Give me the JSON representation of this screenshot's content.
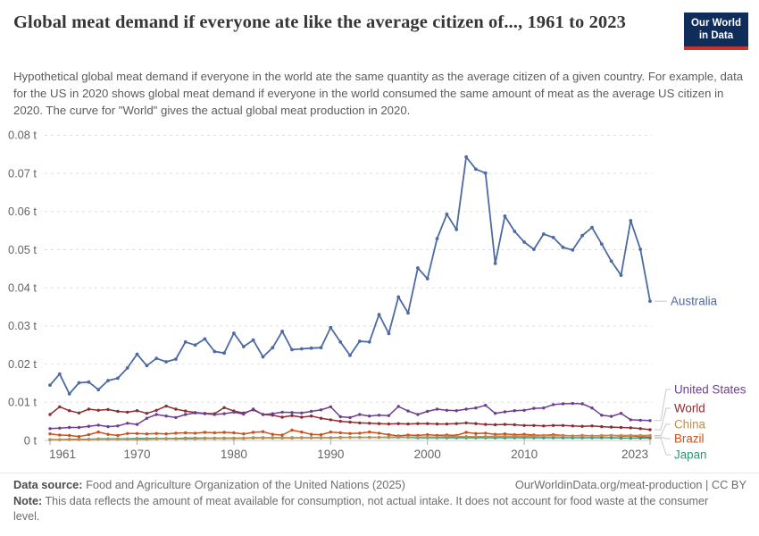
{
  "header": {
    "title": "Global meat demand if everyone ate like the average citizen of..., 1961 to 2023",
    "subtitle": "Hypothetical global meat demand if everyone in the world ate the same quantity as the average citizen of a given country. For example, data for the US in 2020 shows global meat demand if everyone in the world consumed the same amount of meat as the average US citizen in 2020. The curve for \"World\" gives the actual global meat production in 2020.",
    "logo": {
      "line1": "Our World",
      "line2": "in Data",
      "bg_color": "#0F2D5A",
      "accent_color": "#C8342C"
    }
  },
  "chart_data": {
    "type": "line",
    "title": "Global meat demand if everyone ate like the average citizen of..., 1961 to 2023",
    "unit": "t",
    "xlim": [
      1961,
      2023
    ],
    "ylim": [
      0,
      0.08
    ],
    "grid": "horizontal-dashed",
    "legend_position": "right",
    "xticks": [
      1961,
      1970,
      1980,
      1990,
      2000,
      2010,
      2023
    ],
    "yticks": [
      0,
      0.01,
      0.02,
      0.03,
      0.04,
      0.05,
      0.06,
      0.07,
      0.08
    ],
    "ytick_labels": [
      "0 t",
      "0.01 t",
      "0.02 t",
      "0.03 t",
      "0.04 t",
      "0.05 t",
      "0.06 t",
      "0.07 t",
      "0.08 t"
    ],
    "legend_label_y": [
      337,
      436,
      457,
      475,
      491,
      509
    ],
    "axis_text_color": "#636363",
    "gridline_color": "#dedede",
    "axis_line_color": "#c9c9c9",
    "connector_color": "#c8c8c8",
    "x": [
      1961,
      1962,
      1963,
      1964,
      1965,
      1966,
      1967,
      1968,
      1969,
      1970,
      1971,
      1972,
      1973,
      1974,
      1975,
      1976,
      1977,
      1978,
      1979,
      1980,
      1981,
      1982,
      1983,
      1984,
      1985,
      1986,
      1987,
      1988,
      1989,
      1990,
      1991,
      1992,
      1993,
      1994,
      1995,
      1996,
      1997,
      1998,
      1999,
      2000,
      2001,
      2002,
      2003,
      2004,
      2005,
      2006,
      2007,
      2008,
      2009,
      2010,
      2011,
      2012,
      2013,
      2014,
      2015,
      2016,
      2017,
      2018,
      2019,
      2020,
      2021,
      2022,
      2023
    ],
    "series": [
      {
        "name": "Australia",
        "color": "#4D6BA2",
        "values": [
          0.0145,
          0.0174,
          0.0122,
          0.0151,
          0.0153,
          0.0133,
          0.0157,
          0.0163,
          0.019,
          0.0226,
          0.0196,
          0.0215,
          0.0206,
          0.0213,
          0.0258,
          0.025,
          0.0266,
          0.0233,
          0.0229,
          0.0281,
          0.0246,
          0.0263,
          0.0219,
          0.0243,
          0.0286,
          0.0238,
          0.024,
          0.0242,
          0.0243,
          0.0296,
          0.0258,
          0.0223,
          0.026,
          0.0258,
          0.033,
          0.028,
          0.0376,
          0.0334,
          0.0452,
          0.0424,
          0.0529,
          0.0593,
          0.0553,
          0.0743,
          0.0711,
          0.0701,
          0.0464,
          0.0588,
          0.0548,
          0.052,
          0.0501,
          0.0541,
          0.0532,
          0.0506,
          0.0499,
          0.0537,
          0.0558,
          0.0515,
          0.047,
          0.0433,
          0.0576,
          0.0501,
          0.0365
        ]
      },
      {
        "name": "United States",
        "color": "#6D3E91",
        "values": [
          0.0031,
          0.0032,
          0.0034,
          0.0034,
          0.0037,
          0.004,
          0.0036,
          0.0038,
          0.0045,
          0.0042,
          0.0058,
          0.0068,
          0.0064,
          0.006,
          0.0068,
          0.0072,
          0.007,
          0.0068,
          0.007,
          0.0074,
          0.0069,
          0.0082,
          0.0068,
          0.007,
          0.0074,
          0.0073,
          0.0072,
          0.0076,
          0.008,
          0.0088,
          0.0062,
          0.006,
          0.0068,
          0.0064,
          0.0066,
          0.0065,
          0.0089,
          0.0077,
          0.0068,
          0.0076,
          0.0082,
          0.0079,
          0.0078,
          0.0082,
          0.0085,
          0.0092,
          0.0071,
          0.0075,
          0.0078,
          0.0079,
          0.0084,
          0.0085,
          0.0094,
          0.0096,
          0.0097,
          0.0096,
          0.0085,
          0.0066,
          0.0063,
          0.0071,
          0.0054,
          0.0053,
          0.0052
        ]
      },
      {
        "name": "World",
        "color": "#8C2D32",
        "values": [
          0.0068,
          0.0088,
          0.0078,
          0.0072,
          0.0082,
          0.0079,
          0.0081,
          0.0076,
          0.0074,
          0.0078,
          0.0071,
          0.0079,
          0.009,
          0.0082,
          0.0077,
          0.0073,
          0.0071,
          0.007,
          0.0086,
          0.0077,
          0.0072,
          0.008,
          0.0068,
          0.0066,
          0.0061,
          0.0065,
          0.0061,
          0.0064,
          0.0058,
          0.0054,
          0.005,
          0.0048,
          0.0046,
          0.0045,
          0.0044,
          0.0043,
          0.0044,
          0.0043,
          0.0044,
          0.0044,
          0.0043,
          0.0043,
          0.0044,
          0.0046,
          0.0044,
          0.0042,
          0.0041,
          0.0042,
          0.0041,
          0.0039,
          0.0039,
          0.0038,
          0.0039,
          0.0039,
          0.0038,
          0.0037,
          0.0038,
          0.0036,
          0.0035,
          0.0034,
          0.0033,
          0.0031,
          0.0028
        ]
      },
      {
        "name": "China",
        "color": "#BC8E51",
        "values": [
          0.0002,
          0.0002,
          0.0002,
          0.0002,
          0.0002,
          0.0003,
          0.0003,
          0.0003,
          0.0003,
          0.0003,
          0.0003,
          0.0004,
          0.0004,
          0.0004,
          0.0004,
          0.0004,
          0.0005,
          0.0005,
          0.0005,
          0.0005,
          0.0005,
          0.0006,
          0.0006,
          0.0006,
          0.0006,
          0.0006,
          0.0007,
          0.0007,
          0.0007,
          0.0007,
          0.0007,
          0.0008,
          0.0008,
          0.0008,
          0.0008,
          0.0009,
          0.0009,
          0.0009,
          0.0009,
          0.0009,
          0.0009,
          0.001,
          0.001,
          0.001,
          0.001,
          0.001,
          0.0011,
          0.0011,
          0.0011,
          0.0011,
          0.0011,
          0.0012,
          0.0012,
          0.0012,
          0.0012,
          0.0012,
          0.0012,
          0.0013,
          0.0013,
          0.0013,
          0.0013,
          0.0013,
          0.0013
        ]
      },
      {
        "name": "Brazil",
        "color": "#C6531F",
        "values": [
          0.0017,
          0.0014,
          0.0013,
          0.001,
          0.0015,
          0.0022,
          0.0016,
          0.0013,
          0.0018,
          0.0018,
          0.0017,
          0.0018,
          0.0017,
          0.0019,
          0.002,
          0.0019,
          0.0021,
          0.002,
          0.0021,
          0.002,
          0.0017,
          0.0021,
          0.0023,
          0.0016,
          0.0014,
          0.0027,
          0.0022,
          0.0016,
          0.0015,
          0.0022,
          0.002,
          0.0018,
          0.0019,
          0.0022,
          0.0019,
          0.0015,
          0.0012,
          0.0014,
          0.0013,
          0.0015,
          0.0013,
          0.0014,
          0.0013,
          0.0021,
          0.0018,
          0.0019,
          0.0016,
          0.0017,
          0.0015,
          0.0016,
          0.0014,
          0.0013,
          0.0015,
          0.0013,
          0.0012,
          0.0013,
          0.0012,
          0.0012,
          0.0013,
          0.0011,
          0.0012,
          0.001,
          0.0009
        ]
      },
      {
        "name": "Japan",
        "color": "#2D9678",
        "values": [
          0.0002,
          0.0002,
          0.0003,
          0.0003,
          0.0003,
          0.0004,
          0.0004,
          0.0004,
          0.0004,
          0.0005,
          0.0005,
          0.0005,
          0.0005,
          0.0005,
          0.0006,
          0.0006,
          0.0006,
          0.0006,
          0.0006,
          0.0006,
          0.0006,
          0.0007,
          0.0007,
          0.0007,
          0.0007,
          0.0007,
          0.0007,
          0.0007,
          0.0007,
          0.0007,
          0.0008,
          0.0008,
          0.0008,
          0.0008,
          0.0008,
          0.0008,
          0.0008,
          0.0008,
          0.0007,
          0.0007,
          0.0007,
          0.0007,
          0.0007,
          0.0007,
          0.0007,
          0.0007,
          0.0007,
          0.0007,
          0.0007,
          0.0007,
          0.0007,
          0.0007,
          0.0007,
          0.0007,
          0.0007,
          0.0007,
          0.0007,
          0.0007,
          0.0007,
          0.0006,
          0.0006,
          0.0006,
          0.0006
        ]
      }
    ]
  },
  "footer": {
    "source_label": "Data source:",
    "source_text": " Food and Agriculture Organization of the United Nations (2025)",
    "attribution": "OurWorldinData.org/meat-production | CC BY",
    "note_label": "Note:",
    "note_text": " This data reflects the amount of meat available for consumption, not actual intake. It does not account for food waste at the consumer level."
  }
}
